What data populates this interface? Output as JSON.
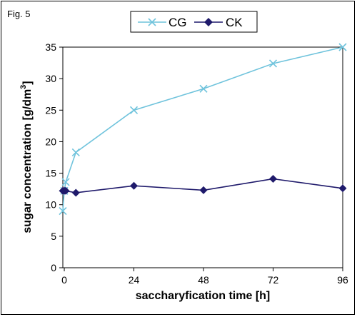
{
  "figure_label": "Fig. 5",
  "chart_data": {
    "type": "line",
    "title": "",
    "xlabel": "saccharyfication time [h]",
    "ylabel_parts": [
      "sugar concentration [g/dm",
      "3",
      "]"
    ],
    "x_ticks": [
      0,
      24,
      48,
      72,
      96
    ],
    "y_ticks": [
      0,
      5,
      10,
      15,
      20,
      25,
      30,
      35
    ],
    "xlim": [
      -0.5,
      96
    ],
    "ylim": [
      0,
      35
    ],
    "grid": false,
    "legend_position": "top-center",
    "series": [
      {
        "name": "CG",
        "marker": "x",
        "color": "#6FC3DC",
        "x": [
          -0.5,
          0,
          0.5,
          4,
          24,
          48,
          72,
          96
        ],
        "y": [
          9.0,
          12.2,
          13.6,
          18.3,
          25.0,
          28.4,
          32.4,
          35.0
        ]
      },
      {
        "name": "CK",
        "marker": "diamond",
        "color": "#1F1A6B",
        "x": [
          -0.5,
          0,
          0.5,
          4,
          24,
          48,
          72,
          96
        ],
        "y": [
          12.2,
          12.2,
          12.2,
          11.9,
          13.0,
          12.3,
          14.1,
          12.6
        ]
      }
    ]
  }
}
